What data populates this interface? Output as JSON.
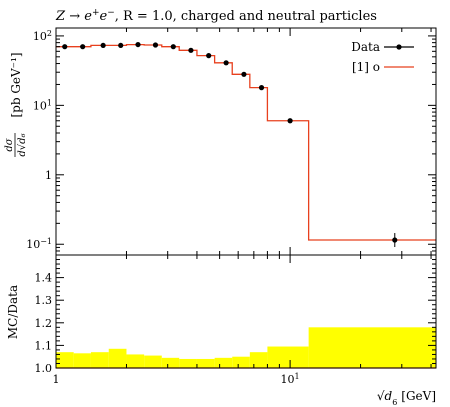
{
  "chart_data": [
    {
      "type": "line",
      "title": "Z → e⁺e⁻, R = 1.0, charged and neutral particles",
      "title_parts": {
        "lhs": "Z",
        "arrow": "→",
        "e": "e",
        "sup_plus": "+",
        "e2": "e",
        "sup_minus": "−",
        "rest": ", R = 1.0, charged and neutral particles"
      },
      "xlabel": "√d₆ [GeV]",
      "xlabel_parts": {
        "sqrt": "√",
        "var": "d",
        "sub": "6",
        "unit": "[GeV]"
      },
      "ylabel": "dσ/d√d₆ [pb GeV⁻¹]",
      "ylabel_parts": {
        "num": "dσ",
        "den": "d√d₆",
        "unit": "[pb GeV⁻¹]"
      },
      "xscale": "log",
      "yscale": "log",
      "xlim": [
        1,
        42
      ],
      "ylim": [
        0.07,
        130
      ],
      "y_ticks": [
        {
          "value": 0.1,
          "base": "10",
          "exp": "−1"
        },
        {
          "value": 1,
          "base": "1",
          "exp": ""
        },
        {
          "value": 10,
          "base": "10",
          "exp": "1"
        },
        {
          "value": 100,
          "base": "10",
          "exp": "2"
        }
      ],
      "x_ticks": [
        {
          "value": 1,
          "base": "1",
          "exp": ""
        },
        {
          "value": 10,
          "base": "10",
          "exp": "1"
        }
      ],
      "legend_position": "top-right",
      "series": [
        {
          "name": "Data",
          "style": "points",
          "color": "#000000",
          "x": [
            1.09,
            1.3,
            1.59,
            1.89,
            2.24,
            2.66,
            3.17,
            3.77,
            4.49,
            5.33,
            6.35,
            7.55,
            10.0,
            28.0
          ],
          "y": [
            70,
            70,
            73,
            73,
            75,
            74,
            70,
            62,
            52,
            41,
            28,
            18,
            6.0,
            0.115
          ]
        },
        {
          "name": "[1] o",
          "style": "step",
          "color": "#e8401e",
          "edges": [
            1.0,
            1.19,
            1.41,
            1.68,
            2.0,
            2.38,
            2.83,
            3.36,
            4.0,
            4.76,
            5.66,
            6.73,
            8.0,
            12.0,
            42.0
          ],
          "y": [
            70,
            70,
            73,
            73,
            75,
            74,
            70,
            62,
            52,
            41,
            28,
            18,
            6.0,
            0.115
          ]
        }
      ]
    },
    {
      "type": "area",
      "ylabel": "MC/Data",
      "xscale": "log",
      "xlim": [
        1,
        42
      ],
      "ylim": [
        1.0,
        1.5
      ],
      "y_ticks": [
        "1.0",
        "1.1",
        "1.2",
        "1.3",
        "1.4"
      ],
      "band_color": "#ffff00",
      "edges": [
        1.0,
        1.19,
        1.41,
        1.68,
        2.0,
        2.38,
        2.83,
        3.36,
        4.0,
        4.76,
        5.66,
        6.73,
        8.0,
        12.0,
        42.0
      ],
      "band_upper": [
        1.07,
        1.065,
        1.07,
        1.085,
        1.06,
        1.055,
        1.045,
        1.04,
        1.04,
        1.045,
        1.05,
        1.07,
        1.095,
        1.18
      ],
      "band_lower": [
        1.0,
        1.0,
        1.0,
        1.0,
        1.0,
        1.0,
        1.0,
        1.0,
        1.0,
        1.0,
        1.0,
        1.0,
        1.0,
        1.0
      ],
      "ratio": 1.0
    }
  ]
}
